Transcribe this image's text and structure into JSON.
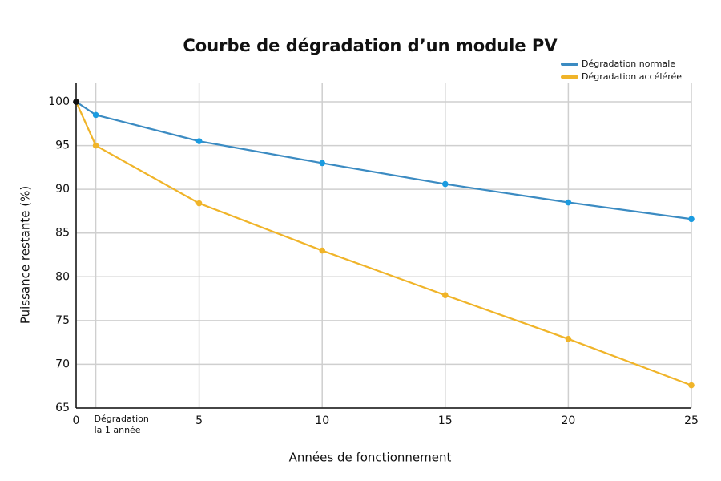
{
  "chart_data": {
    "type": "line",
    "title": "Courbe de dégradation d’un module PV",
    "x_label": "Années de fonctionnement",
    "y_label": "Puissance restante (%)",
    "x": [
      0,
      0.8,
      5,
      10,
      15,
      20,
      25
    ],
    "series": [
      {
        "name": "Dégradation normale",
        "color": "#3b8bc2",
        "marker_color": "#1a9be0",
        "values": [
          100,
          98.5,
          95.5,
          93,
          90.6,
          88.5,
          86.6
        ]
      },
      {
        "name": "Dégradation accélérée",
        "color": "#f0b429",
        "marker_color": "#f0b429",
        "values": [
          100,
          95,
          88.4,
          83,
          77.9,
          72.9,
          67.6
        ]
      }
    ],
    "xlim": [
      0,
      25
    ],
    "xticks": [
      0,
      {
        "value": 0.8,
        "label": "Dégradation la 1 année"
      },
      5,
      10,
      15,
      20,
      25
    ],
    "ylim": [
      65,
      102.2
    ],
    "yticks": [
      65,
      70,
      75,
      80,
      85,
      90,
      95,
      100
    ],
    "grid": true,
    "legend": "top-right"
  }
}
